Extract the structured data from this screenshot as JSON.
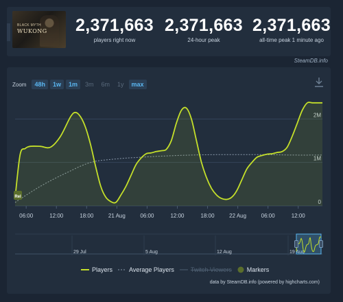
{
  "stats": {
    "game_title_small": "BLACK MYTH",
    "game_title_large": "WUKONG",
    "items": [
      {
        "value": "2,371,663",
        "label": "players right now"
      },
      {
        "value": "2,371,663",
        "label": "24-hour peak"
      },
      {
        "value": "2,371,663",
        "label": "all-time peak 1 minute ago"
      }
    ],
    "credit": "SteamDB.info"
  },
  "chart": {
    "zoom_label": "Zoom",
    "zoom_options": [
      {
        "label": "48h",
        "active": true
      },
      {
        "label": "1w",
        "active": true
      },
      {
        "label": "1m",
        "active": true
      },
      {
        "label": "3m",
        "active": false
      },
      {
        "label": "6m",
        "active": false
      },
      {
        "label": "1y",
        "active": false
      },
      {
        "label": "max",
        "active": true
      }
    ],
    "marker_label": "Rel",
    "navigator_labels": [
      "29 Jul",
      "5 Aug",
      "12 Aug",
      "19 Aug"
    ],
    "legend": [
      {
        "label": "Players",
        "muted": false
      },
      {
        "label": "Average Players",
        "muted": false
      },
      {
        "label": "Twitch Viewers",
        "muted": true
      },
      {
        "label": "Markers",
        "muted": false
      }
    ],
    "credit": "data by SteamDB.info (powered by highcharts.com)",
    "colors": {
      "players": "#c5e02a",
      "average": "#8b9aab",
      "markers": "#5b6e2c",
      "grid": "#34445a",
      "background": "#222e3d"
    }
  },
  "chart_data": {
    "type": "line",
    "title": "",
    "x_tick_labels": [
      "06:00",
      "12:00",
      "18:00",
      "21 Aug",
      "06:00",
      "12:00",
      "18:00",
      "22 Aug",
      "06:00",
      "12:00"
    ],
    "y_tick_labels": [
      "0",
      "1M",
      "2M"
    ],
    "ylim": [
      0,
      2400000
    ],
    "grid": true,
    "legend_position": "bottom",
    "series": [
      {
        "name": "Players",
        "x_hours": [
          0,
          1,
          2,
          3,
          5,
          7,
          9,
          11,
          12,
          13,
          14,
          15,
          16,
          17,
          18,
          19,
          20,
          21,
          22,
          23,
          24,
          25,
          26,
          27,
          28,
          29,
          30,
          31,
          32,
          33,
          34,
          35,
          36,
          37,
          38,
          39,
          40,
          41,
          42,
          43,
          44,
          45,
          46,
          47,
          48,
          49,
          50,
          51,
          52,
          53,
          54,
          55,
          56,
          57,
          58,
          59,
          60,
          61
        ],
        "values": [
          180000,
          1180000,
          1320000,
          1370000,
          1370000,
          1350000,
          1600000,
          2050000,
          2150000,
          2050000,
          1800000,
          1400000,
          900000,
          450000,
          200000,
          100000,
          80000,
          250000,
          450000,
          700000,
          950000,
          1100000,
          1200000,
          1220000,
          1250000,
          1270000,
          1300000,
          1500000,
          1900000,
          2200000,
          2250000,
          2000000,
          1500000,
          1000000,
          650000,
          400000,
          250000,
          170000,
          150000,
          200000,
          350000,
          600000,
          850000,
          1000000,
          1120000,
          1160000,
          1190000,
          1200000,
          1230000,
          1250000,
          1350000,
          1600000,
          1900000,
          2200000,
          2371663,
          2371663,
          2371663,
          2371663
        ]
      },
      {
        "name": "Average Players",
        "x_hours": [
          0,
          5,
          10,
          15,
          20,
          25,
          30,
          35,
          40,
          45,
          50,
          55,
          61
        ],
        "values": [
          80000,
          450000,
          750000,
          1000000,
          1080000,
          1120000,
          1150000,
          1170000,
          1180000,
          1180000,
          1180000,
          1170000,
          1170000
        ]
      }
    ],
    "markers": [
      {
        "x_hours": 0,
        "label": "Rel"
      }
    ]
  }
}
